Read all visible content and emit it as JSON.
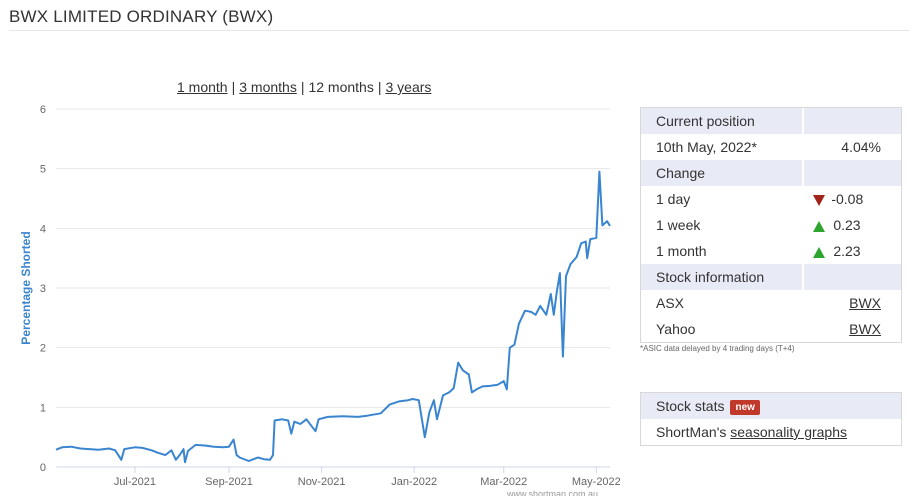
{
  "page": {
    "title": "BWX LIMITED ORDINARY (BWX)"
  },
  "periods": [
    {
      "label": "1 month",
      "link": true
    },
    {
      "label": "3 months",
      "link": true
    },
    {
      "label": "12 months",
      "link": false
    },
    {
      "label": "3 years",
      "link": true
    }
  ],
  "chart_data": {
    "type": "line",
    "title": "",
    "xlabel": "",
    "ylabel": "Percentage Shorted",
    "ylim": [
      0,
      6
    ],
    "yticks": [
      0,
      1,
      2,
      3,
      4,
      5,
      6
    ],
    "xlim": [
      "2021-05-10",
      "2022-05-10"
    ],
    "xticks": [
      {
        "date": "2021-07-01",
        "label": "Jul-2021"
      },
      {
        "date": "2021-09-01",
        "label": "Sep-2021"
      },
      {
        "date": "2021-11-01",
        "label": "Nov-2021"
      },
      {
        "date": "2022-01-01",
        "label": "Jan-2022"
      },
      {
        "date": "2022-03-01",
        "label": "Mar-2022"
      },
      {
        "date": "2022-05-01",
        "label": "May-2022"
      }
    ],
    "grid": true,
    "credit": "www.shortman.com.au",
    "series": [
      {
        "color": "#3a85d0",
        "points": [
          [
            "2021-05-10",
            0.29
          ],
          [
            "2021-05-14",
            0.33
          ],
          [
            "2021-05-20",
            0.34
          ],
          [
            "2021-05-26",
            0.31
          ],
          [
            "2021-06-01",
            0.3
          ],
          [
            "2021-06-07",
            0.29
          ],
          [
            "2021-06-14",
            0.31
          ],
          [
            "2021-06-18",
            0.28
          ],
          [
            "2021-06-22",
            0.12
          ],
          [
            "2021-06-24",
            0.3
          ],
          [
            "2021-07-01",
            0.33
          ],
          [
            "2021-07-06",
            0.32
          ],
          [
            "2021-07-12",
            0.28
          ],
          [
            "2021-07-16",
            0.24
          ],
          [
            "2021-07-21",
            0.2
          ],
          [
            "2021-07-25",
            0.28
          ],
          [
            "2021-07-28",
            0.12
          ],
          [
            "2021-07-31",
            0.22
          ],
          [
            "2021-08-02",
            0.3
          ],
          [
            "2021-08-03",
            0.08
          ],
          [
            "2021-08-05",
            0.27
          ],
          [
            "2021-08-10",
            0.37
          ],
          [
            "2021-08-16",
            0.36
          ],
          [
            "2021-08-22",
            0.34
          ],
          [
            "2021-08-28",
            0.33
          ],
          [
            "2021-09-01",
            0.34
          ],
          [
            "2021-09-04",
            0.46
          ],
          [
            "2021-09-06",
            0.2
          ],
          [
            "2021-09-08",
            0.16
          ],
          [
            "2021-09-14",
            0.1
          ],
          [
            "2021-09-20",
            0.16
          ],
          [
            "2021-09-24",
            0.13
          ],
          [
            "2021-09-28",
            0.12
          ],
          [
            "2021-09-30",
            0.2
          ],
          [
            "2021-10-01",
            0.78
          ],
          [
            "2021-10-06",
            0.8
          ],
          [
            "2021-10-10",
            0.78
          ],
          [
            "2021-10-12",
            0.56
          ],
          [
            "2021-10-14",
            0.76
          ],
          [
            "2021-10-18",
            0.72
          ],
          [
            "2021-10-22",
            0.8
          ],
          [
            "2021-10-28",
            0.6
          ],
          [
            "2021-10-30",
            0.8
          ],
          [
            "2021-11-05",
            0.84
          ],
          [
            "2021-11-15",
            0.85
          ],
          [
            "2021-11-25",
            0.84
          ],
          [
            "2021-12-01",
            0.86
          ],
          [
            "2021-12-10",
            0.9
          ],
          [
            "2021-12-16",
            1.05
          ],
          [
            "2021-12-22",
            1.1
          ],
          [
            "2021-12-28",
            1.12
          ],
          [
            "2021-12-31",
            1.14
          ],
          [
            "2022-01-04",
            1.12
          ],
          [
            "2022-01-08",
            0.5
          ],
          [
            "2022-01-11",
            0.92
          ],
          [
            "2022-01-14",
            1.12
          ],
          [
            "2022-01-16",
            0.8
          ],
          [
            "2022-01-20",
            1.2
          ],
          [
            "2022-01-24",
            1.25
          ],
          [
            "2022-01-27",
            1.32
          ],
          [
            "2022-01-30",
            1.75
          ],
          [
            "2022-02-02",
            1.62
          ],
          [
            "2022-02-06",
            1.55
          ],
          [
            "2022-02-08",
            1.25
          ],
          [
            "2022-02-11",
            1.3
          ],
          [
            "2022-02-15",
            1.35
          ],
          [
            "2022-02-20",
            1.36
          ],
          [
            "2022-02-25",
            1.38
          ],
          [
            "2022-03-01",
            1.44
          ],
          [
            "2022-03-03",
            1.3
          ],
          [
            "2022-03-05",
            2.0
          ],
          [
            "2022-03-08",
            2.05
          ],
          [
            "2022-03-11",
            2.4
          ],
          [
            "2022-03-15",
            2.62
          ],
          [
            "2022-03-19",
            2.6
          ],
          [
            "2022-03-22",
            2.55
          ],
          [
            "2022-03-25",
            2.7
          ],
          [
            "2022-03-29",
            2.55
          ],
          [
            "2022-04-01",
            2.9
          ],
          [
            "2022-04-03",
            2.55
          ],
          [
            "2022-04-05",
            2.95
          ],
          [
            "2022-04-07",
            3.25
          ],
          [
            "2022-04-09",
            1.85
          ],
          [
            "2022-04-11",
            3.2
          ],
          [
            "2022-04-14",
            3.4
          ],
          [
            "2022-04-18",
            3.52
          ],
          [
            "2022-04-21",
            3.75
          ],
          [
            "2022-04-24",
            3.78
          ],
          [
            "2022-04-25",
            3.5
          ],
          [
            "2022-04-27",
            3.82
          ],
          [
            "2022-05-01",
            3.84
          ],
          [
            "2022-05-03",
            4.95
          ],
          [
            "2022-05-05",
            4.05
          ],
          [
            "2022-05-08",
            4.12
          ],
          [
            "2022-05-10",
            4.04
          ]
        ]
      }
    ]
  },
  "position": {
    "header_current": "Current position",
    "date": "10th May, 2022*",
    "value": "4.04%",
    "header_change": "Change",
    "rows": [
      {
        "label": "1 day",
        "dir": "down",
        "value": "-0.08"
      },
      {
        "label": "1 week",
        "dir": "up",
        "value": "0.23"
      },
      {
        "label": "1 month",
        "dir": "up",
        "value": "2.23"
      }
    ],
    "header_info": "Stock information",
    "info_rows": [
      {
        "label": "ASX",
        "value": "BWX"
      },
      {
        "label": "Yahoo",
        "value": "BWX"
      }
    ],
    "footnote": "*ASIC data delayed by 4 trading days (T+4)"
  },
  "stats": {
    "header": "Stock stats",
    "badge": "new",
    "body_prefix": "ShortMan's ",
    "body_link": "seasonality graphs"
  },
  "colors": {
    "header_bg": "#e8eaf6",
    "line": "#3a85d0",
    "down": "#a0231a",
    "up": "#2ea52e",
    "badge": "#c0392b"
  }
}
